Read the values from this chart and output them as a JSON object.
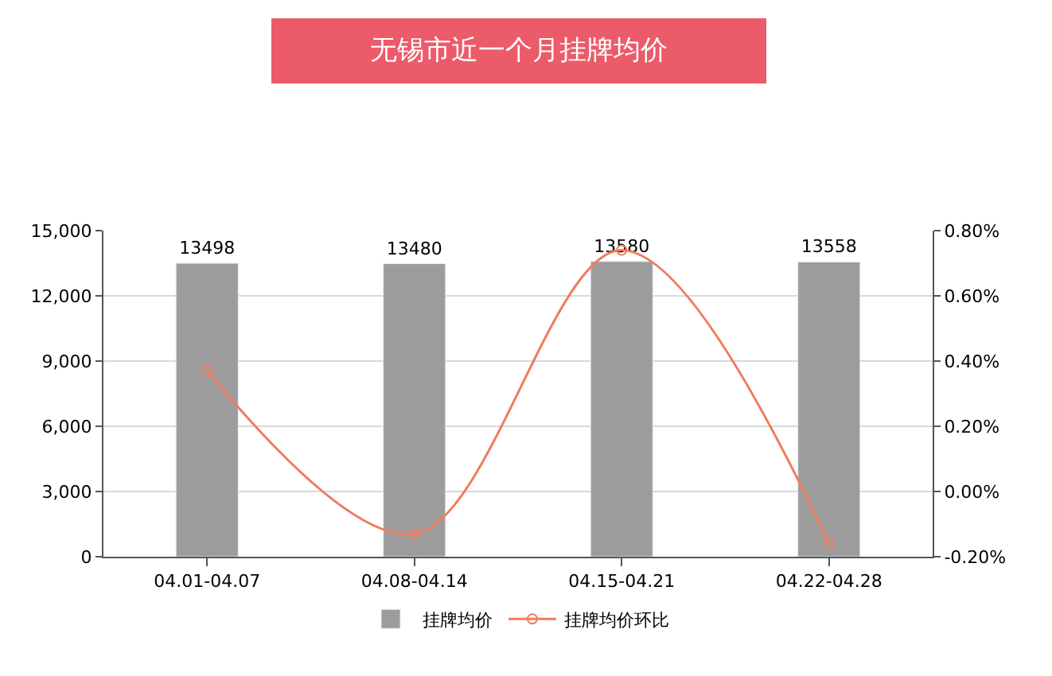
{
  "chart_data": {
    "type": "bar",
    "title": "无锡市近一个月挂牌均价",
    "categories": [
      "04.01-04.07",
      "04.08-04.14",
      "04.15-04.21",
      "04.22-04.28"
    ],
    "series": [
      {
        "name": "挂牌均价",
        "color": "#9c9c9c",
        "values": [
          13498,
          13480,
          13580,
          13558
        ],
        "data_labels": true
      },
      {
        "name": "挂牌均价环比",
        "type": "line",
        "axis": "y2",
        "color": "#f07c5c",
        "marker": "circle",
        "line_style": "solid",
        "values": [
          0.37,
          -0.13,
          0.74,
          -0.16
        ]
      }
    ],
    "ylim": [
      0,
      15000
    ],
    "yticks": [
      {
        "value": 0,
        "label": "0"
      },
      {
        "value": 3000,
        "label": "3,000"
      },
      {
        "value": 6000,
        "label": "6,000"
      },
      {
        "value": 9000,
        "label": "9,000"
      },
      {
        "value": 12000,
        "label": "12,000"
      },
      {
        "value": 15000,
        "label": "15,000"
      }
    ],
    "y2lim": [
      -0.2,
      0.8
    ],
    "y2ticks": [
      {
        "value": -0.2,
        "label": "-0.20%"
      },
      {
        "value": 0,
        "label": "0.00%"
      },
      {
        "value": 0.2,
        "label": "0.20%"
      },
      {
        "value": 0.4,
        "label": "0.40%"
      },
      {
        "value": 0.6,
        "label": "0.60%"
      },
      {
        "value": 0.8,
        "label": "0.80%"
      }
    ],
    "grid": "y",
    "legend": "bottom"
  }
}
